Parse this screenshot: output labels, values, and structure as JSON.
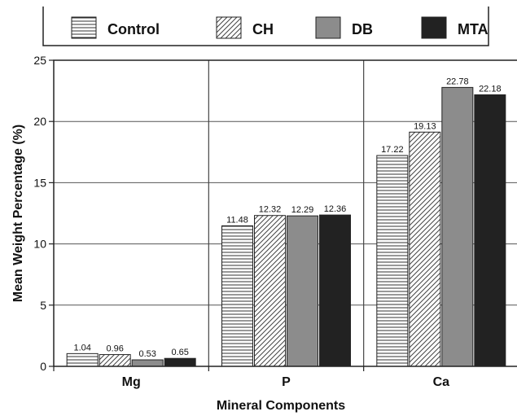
{
  "chart_data": {
    "type": "bar",
    "categories": [
      "Mg",
      "P",
      "Ca"
    ],
    "series": [
      {
        "name": "Control",
        "values": [
          1.04,
          11.48,
          17.22
        ],
        "color": "#ffffff",
        "pattern": "horizontal-lines"
      },
      {
        "name": "CH",
        "values": [
          0.96,
          12.32,
          19.13
        ],
        "color": "#ffffff",
        "pattern": "diagonal-lines"
      },
      {
        "name": "DB",
        "values": [
          0.53,
          12.29,
          22.78
        ],
        "color": "#8c8c8c",
        "pattern": "solid"
      },
      {
        "name": "MTA",
        "values": [
          0.65,
          12.36,
          22.18
        ],
        "color": "#222222",
        "pattern": "solid"
      }
    ],
    "data_labels": [
      [
        "1.04",
        "11.48",
        "17.22"
      ],
      [
        "0.96",
        "12.32",
        "19.13"
      ],
      [
        "0.53",
        "12.29",
        "22.78"
      ],
      [
        "0.65",
        "12.36",
        "22.18"
      ]
    ],
    "xlabel": "Mineral Components",
    "ylabel": "Mean Weight Percentage (%)",
    "ylim": [
      0,
      25
    ],
    "yticks": [
      "0",
      "5",
      "10",
      "15",
      "20",
      "25"
    ],
    "grid": true,
    "legend_position": "top"
  }
}
